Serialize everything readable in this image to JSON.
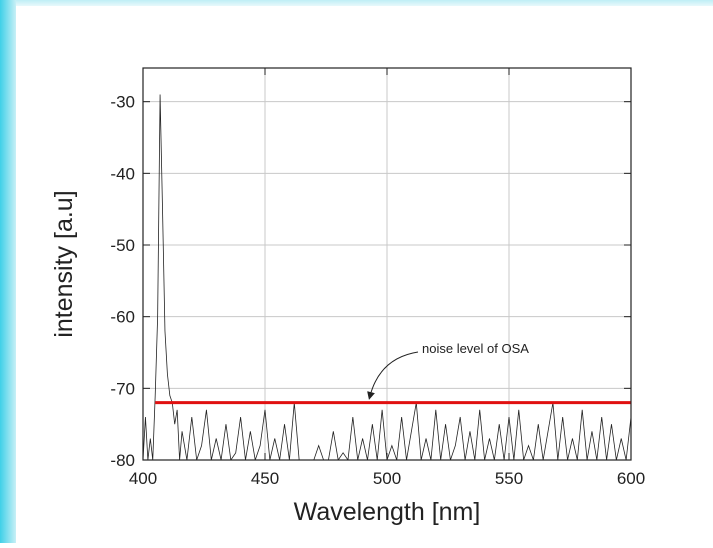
{
  "chart_data": {
    "type": "line",
    "xlabel": "Wavelength [nm]",
    "ylabel": "intensity [a.u]",
    "annotation": "noise level of OSA",
    "xlim": [
      400,
      600
    ],
    "xticks": [
      400,
      450,
      500,
      550,
      600
    ],
    "ylim": [
      -80,
      -25.3
    ],
    "yticks": [
      -30,
      -40,
      -50,
      -60,
      -70,
      -80
    ],
    "grid": true,
    "series": [
      {
        "color": "#222222",
        "x": [
          400,
          401,
          402,
          403,
          404,
          405,
          406,
          407,
          408,
          409,
          410,
          411,
          412,
          413,
          414,
          415,
          416,
          418,
          420,
          422,
          424,
          426,
          428,
          430,
          432,
          434,
          436,
          438,
          440,
          442,
          444,
          446,
          448,
          450,
          452,
          454,
          456,
          458,
          460,
          462,
          464,
          466,
          468,
          470,
          472,
          474,
          476,
          478,
          480,
          482,
          484,
          486,
          488,
          490,
          492,
          494,
          496,
          498,
          500,
          502,
          504,
          506,
          508,
          510,
          512,
          514,
          516,
          518,
          520,
          522,
          524,
          526,
          528,
          530,
          532,
          534,
          536,
          538,
          540,
          542,
          544,
          546,
          548,
          550,
          552,
          554,
          556,
          558,
          560,
          562,
          564,
          566,
          568,
          570,
          572,
          574,
          576,
          578,
          580,
          582,
          584,
          586,
          588,
          590,
          592,
          594,
          596,
          598,
          600
        ],
        "values": [
          -80,
          -74,
          -80,
          -77,
          -80,
          -71,
          -60,
          -29,
          -45,
          -62,
          -68,
          -71,
          -72,
          -75,
          -73,
          -80,
          -76,
          -80,
          -74,
          -80,
          -78,
          -73,
          -80,
          -77,
          -80,
          -75,
          -80,
          -79,
          -74,
          -80,
          -76,
          -80,
          -78,
          -73,
          -80,
          -77,
          -80,
          -75,
          -80,
          -72,
          -80,
          -80,
          -80,
          -80,
          -78,
          -80,
          -80,
          -76,
          -80,
          -79,
          -80,
          -74,
          -80,
          -77,
          -80,
          -75,
          -80,
          -73,
          -80,
          -78,
          -80,
          -74,
          -80,
          -76,
          -72,
          -80,
          -77,
          -80,
          -73,
          -80,
          -75,
          -80,
          -78,
          -74,
          -80,
          -76,
          -80,
          -73,
          -80,
          -77,
          -80,
          -75,
          -80,
          -74,
          -80,
          -73,
          -80,
          -78,
          -80,
          -75,
          -80,
          -76,
          -72,
          -80,
          -74,
          -80,
          -77,
          -80,
          -73,
          -80,
          -76,
          -80,
          -74,
          -80,
          -75,
          -80,
          -77,
          -80,
          -74
        ]
      },
      {
        "color": "#e01010",
        "x": [
          405,
          600
        ],
        "values": [
          -72,
          -72
        ]
      }
    ]
  }
}
